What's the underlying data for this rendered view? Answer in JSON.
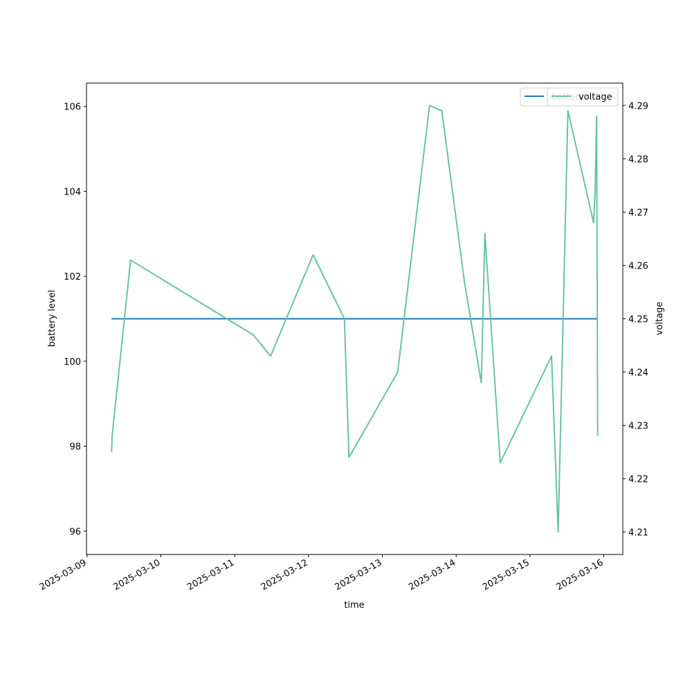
{
  "chart_data": {
    "type": "line",
    "xlabel": "time",
    "ylabel_left": "battery level",
    "ylabel_right": "voltage",
    "x_tick_labels": [
      "2025-03-09",
      "2025-03-10",
      "2025-03-11",
      "2025-03-12",
      "2025-03-13",
      "2025-03-14",
      "2025-03-15",
      "2025-03-16"
    ],
    "y_left_ticks": [
      96,
      98,
      100,
      102,
      104,
      106
    ],
    "y_right_ticks": [
      4.21,
      4.22,
      4.23,
      4.24,
      4.25,
      4.26,
      4.27,
      4.28,
      4.29
    ],
    "xlim": [
      "2025-03-08T23:50",
      "2025-03-16T06:10"
    ],
    "ylim_left": [
      95.45,
      106.55
    ],
    "ylim_right": [
      4.2058,
      4.2942
    ],
    "series": [
      {
        "name": "battery",
        "axis": "left",
        "color": "#1f77b4",
        "x": [
          "2025-03-09T08:00",
          "2025-03-15T22:00"
        ],
        "y": [
          101,
          101
        ]
      },
      {
        "name": "voltage",
        "axis": "right",
        "color": "#66c2a5",
        "x": [
          "2025-03-09T08:00",
          "2025-03-09T08:10",
          "2025-03-09T14:10",
          "2025-03-11T06:00",
          "2025-03-11T11:40",
          "2025-03-12T01:30",
          "2025-03-12T11:40",
          "2025-03-12T13:10",
          "2025-03-13T05:00",
          "2025-03-13T15:20",
          "2025-03-13T19:20",
          "2025-03-14T02:40",
          "2025-03-14T08:10",
          "2025-03-14T09:20",
          "2025-03-14T14:20",
          "2025-03-15T07:00",
          "2025-03-15T09:10",
          "2025-03-15T12:20",
          "2025-03-15T20:40",
          "2025-03-15T21:10",
          "2025-03-15T21:40",
          "2025-03-15T22:00"
        ],
        "y": [
          4.225,
          4.228,
          4.261,
          4.247,
          4.243,
          4.262,
          4.25,
          4.224,
          4.24,
          4.29,
          4.289,
          4.257,
          4.238,
          4.266,
          4.223,
          4.243,
          4.21,
          4.289,
          4.268,
          4.274,
          4.288,
          4.228
        ]
      }
    ],
    "legend": [
      "battery",
      "voltage"
    ],
    "legend_position": "upper-right",
    "grid": false
  }
}
